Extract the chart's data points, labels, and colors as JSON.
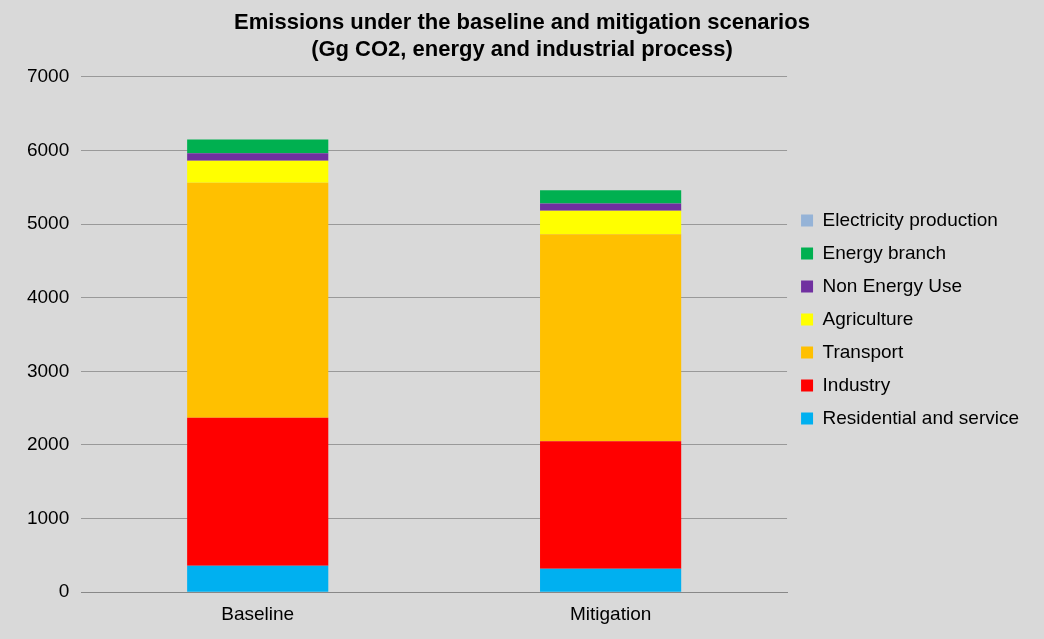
{
  "chart_data": {
    "type": "bar",
    "title": "Emissions under the baseline and mitigation scenarios\n(Gg CO2, energy and industrial process)",
    "categories": [
      "Baseline",
      "Mitigation"
    ],
    "stacked": true,
    "series": [
      {
        "name": "Residential and service",
        "color": "#00b0f0",
        "values": [
          360,
          320
        ]
      },
      {
        "name": "Industry",
        "color": "#ff0000",
        "values": [
          2010,
          1730
        ]
      },
      {
        "name": "Transport",
        "color": "#ffc000",
        "values": [
          3190,
          2810
        ]
      },
      {
        "name": "Agriculture",
        "color": "#ffff00",
        "values": [
          300,
          320
        ]
      },
      {
        "name": "Non Energy Use",
        "color": "#7030a0",
        "values": [
          100,
          100
        ]
      },
      {
        "name": "Energy branch",
        "color": "#00b050",
        "values": [
          190,
          180
        ]
      },
      {
        "name": "Electricity production",
        "color": "#95b3d7",
        "values": [
          0,
          0
        ]
      }
    ],
    "ylim": [
      0,
      7000
    ],
    "yticks": [
      0,
      1000,
      2000,
      3000,
      4000,
      5000,
      6000,
      7000
    ],
    "grid": "y",
    "legend": "right"
  }
}
